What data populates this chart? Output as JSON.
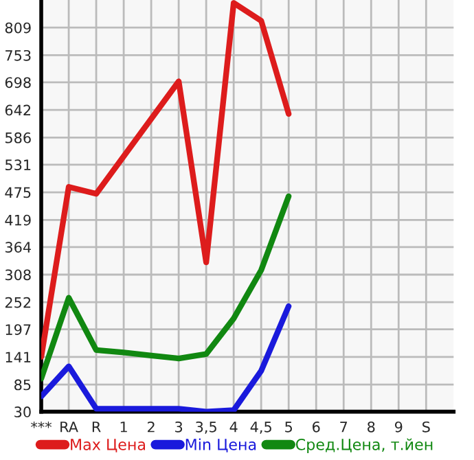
{
  "chart_data": {
    "type": "line",
    "categories": [
      "***",
      "RA",
      "R",
      "1",
      "2",
      "3",
      "3,5",
      "4",
      "4,5",
      "5",
      "6",
      "7",
      "8",
      "9",
      "S"
    ],
    "series": [
      {
        "name": "Max Цена",
        "color": "#dd1c1c",
        "values": [
          141,
          486,
          472,
          null,
          null,
          700,
          333,
          859,
          823,
          634,
          null,
          null,
          null,
          null,
          null
        ]
      },
      {
        "name": "Min Цена",
        "color": "#1a1adc",
        "values": [
          61,
          122,
          36,
          36,
          36,
          36,
          30,
          33,
          113,
          244,
          null,
          null,
          null,
          null,
          null
        ]
      },
      {
        "name": "Сред.Цена, т.йен",
        "color": "#118811",
        "values": [
          97,
          261,
          155,
          150,
          144,
          138,
          147,
          219,
          317,
          467,
          null,
          null,
          null,
          null,
          null
        ]
      }
    ],
    "ylim": [
      30,
      865
    ],
    "yticks": [
      30,
      85,
      141,
      197,
      252,
      308,
      364,
      419,
      475,
      531,
      586,
      642,
      698,
      753,
      809
    ],
    "grid": true,
    "legend": "bottom",
    "marker": "none",
    "line_style": "solid"
  }
}
